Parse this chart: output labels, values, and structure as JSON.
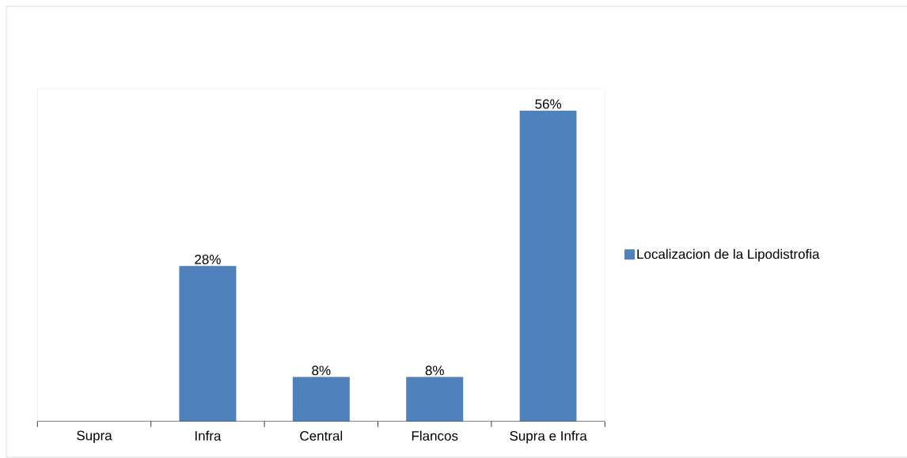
{
  "chart_data": {
    "type": "bar",
    "categories": [
      "Supra",
      "Infra",
      "Central",
      "Flancos",
      "Supra e Infra"
    ],
    "series": [
      {
        "name": "Localizacion de la Lipodistrofia",
        "color": "#4f81bd",
        "values": [
          0,
          28,
          8,
          8,
          56
        ],
        "value_labels": [
          null,
          "28%",
          "8%",
          "8%",
          "56%"
        ]
      }
    ],
    "legend": "right"
  }
}
